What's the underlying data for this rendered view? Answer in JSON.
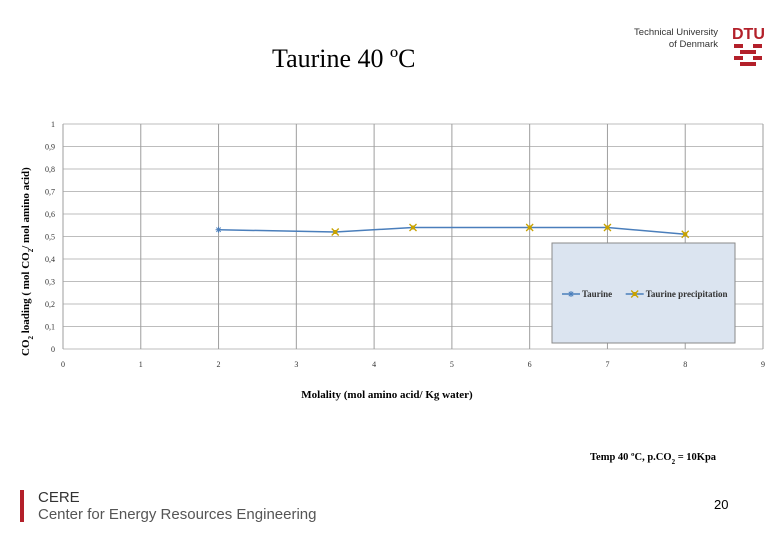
{
  "slide": {
    "title": "Taurine 40 ºC",
    "brand_line1": "Technical University",
    "brand_line2": "of Denmark",
    "dtu_logo": "DTU",
    "footer_org": "CERE",
    "footer_org_full": "Center for Energy Resources Engineering",
    "page_number": "20",
    "accent_color": "#b3202a"
  },
  "chart_data": {
    "type": "line",
    "title": "",
    "xlabel": "Molality (mol amino acid/ Kg water)",
    "ylabel_parts": [
      "CO",
      "2",
      " loading ( mol CO",
      "2",
      "/ mol amino acid)"
    ],
    "xlim": [
      0,
      9
    ],
    "ylim": [
      0,
      1
    ],
    "xticks": [
      "0",
      "1",
      "2",
      "3",
      "4",
      "5",
      "6",
      "7",
      "8",
      "9"
    ],
    "yticks": [
      "0",
      "0,1",
      "0,2",
      "0,3",
      "0,4",
      "0,5",
      "0,6",
      "0,7",
      "0,8",
      "0,9",
      "1"
    ],
    "grid": true,
    "legend_position": "right, overlapping plot area",
    "series": [
      {
        "name": "Taurine",
        "x": [
          2
        ],
        "y": [
          0.53
        ],
        "color": "#4a7ebb",
        "marker": "star"
      },
      {
        "name": "Taurine precipitation",
        "x": [
          3.5,
          4.5,
          6,
          7,
          8
        ],
        "y": [
          0.52,
          0.54,
          0.54,
          0.54,
          0.51
        ],
        "color": "#c8a200",
        "marker": "x"
      }
    ],
    "connecting_line_color": "#4a7ebb",
    "annotation": {
      "parts": [
        "Temp 40 ºC,  p.CO",
        "2",
        " = 10Kpa"
      ]
    }
  }
}
